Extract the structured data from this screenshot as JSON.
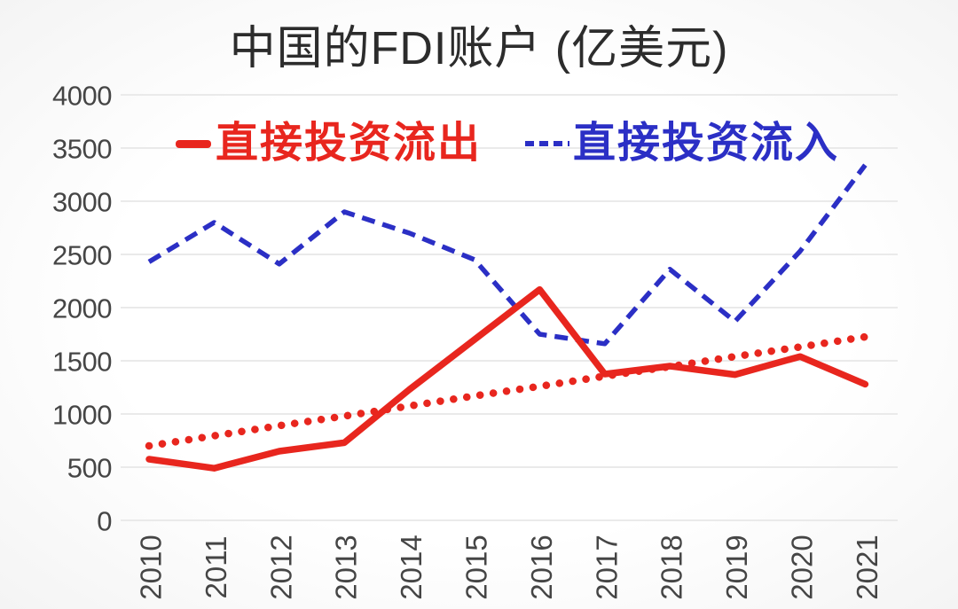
{
  "title": "中国的FDI账户 (亿美元)",
  "legend": {
    "outflow_label": "直接投资流出",
    "inflow_label": "直接投资流入"
  },
  "colors": {
    "outflow": "#e8261e",
    "inflow": "#2b2fc5",
    "grid": "#eaeaea",
    "axis_text": "#454545",
    "title_text": "#2c2c2c",
    "background": "#fdfdfd"
  },
  "y_axis": {
    "min": 0,
    "max": 4000,
    "tick_step": 500,
    "tick_labels": [
      "0",
      "500",
      "1000",
      "1500",
      "2000",
      "2500",
      "3000",
      "3500",
      "4000"
    ]
  },
  "x_axis": {
    "tick_labels": [
      "2010",
      "2011",
      "2012",
      "2013",
      "2014",
      "2015",
      "2016",
      "2017",
      "2018",
      "2019",
      "2020",
      "2021"
    ],
    "rotation_deg": -90
  },
  "chart_data": {
    "type": "line",
    "title": "中国的FDI账户 (亿美元)",
    "unit": "亿美元",
    "categories": [
      "2010",
      "2011",
      "2012",
      "2013",
      "2014",
      "2015",
      "2016",
      "2017",
      "2018",
      "2019",
      "2020",
      "2021"
    ],
    "series": [
      {
        "name": "直接投资流出",
        "in_legend": true,
        "line_style": "solid",
        "color": "#e8261e",
        "values": [
          575,
          490,
          650,
          730,
          1230,
          1700,
          2170,
          1375,
          1450,
          1370,
          1540,
          1280
        ]
      },
      {
        "name": "直接投资流入",
        "in_legend": true,
        "line_style": "dashed",
        "color": "#2b2fc5",
        "values": [
          2430,
          2800,
          2410,
          2900,
          2700,
          2450,
          1750,
          1660,
          2360,
          1870,
          2530,
          3340
        ]
      },
      {
        "name": "outflow-trend-dotted",
        "in_legend": false,
        "line_style": "dotted",
        "color": "#e8261e",
        "values": [
          700,
          795,
          890,
          980,
          1075,
          1170,
          1260,
          1355,
          1445,
          1540,
          1630,
          1725
        ]
      }
    ],
    "ylim": [
      0,
      4000
    ],
    "ytick_step": 500,
    "grid": "horizontal",
    "legend_position": "top-inside",
    "x_label_rotation": -90
  }
}
